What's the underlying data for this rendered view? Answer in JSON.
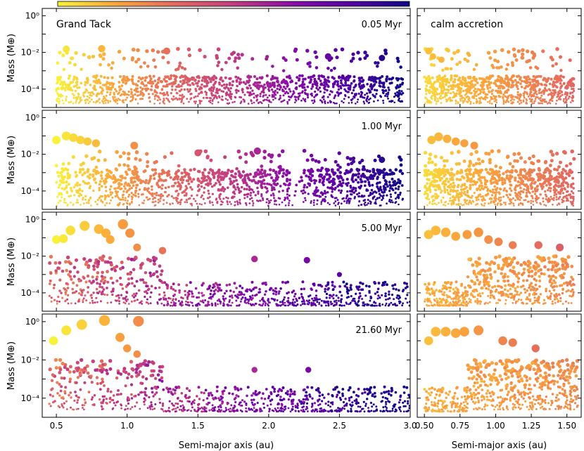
{
  "colorbar": {
    "colors": [
      "#f9f23a",
      "#fba53c",
      "#e36a5f",
      "#c23c81",
      "#8a0da8",
      "#5402a3",
      "#0d0887"
    ]
  },
  "chart_data": [
    {
      "type": "scatter",
      "panel": "Grand Tack",
      "title": "Grand Tack",
      "time_label": "0.05 Myr",
      "ylabel": "Mass (M⊕)",
      "yscale": "log",
      "ylim": [
        1e-05,
        2.5
      ],
      "xlim": [
        0.4,
        3.0
      ],
      "xrange_bodies": [
        0.5,
        2.95
      ],
      "notable_points": [
        {
          "x": 0.57,
          "y": 0.015
        },
        {
          "x": 0.82,
          "y": 0.016
        },
        {
          "x": 1.28,
          "y": 0.012
        },
        {
          "x": 2.42,
          "y": 0.006
        },
        {
          "x": 2.8,
          "y": 0.005
        }
      ]
    },
    {
      "type": "scatter",
      "panel": "calm accretion",
      "title": "calm accretion",
      "time_label": "",
      "ylabel": "",
      "yscale": "log",
      "ylim": [
        1e-05,
        2.5
      ],
      "xlim": [
        0.45,
        1.6
      ],
      "xrange_bodies": [
        0.5,
        1.55
      ],
      "notable_points": [
        {
          "x": 0.53,
          "y": 0.012
        },
        {
          "x": 0.56,
          "y": 0.006
        },
        {
          "x": 0.62,
          "y": 0.004
        }
      ]
    },
    {
      "type": "scatter",
      "panel": "Grand Tack",
      "title": "",
      "time_label": "1.00 Myr",
      "ylabel": "Mass (M⊕)",
      "yscale": "log",
      "ylim": [
        1e-05,
        2.5
      ],
      "xlim": [
        0.4,
        3.0
      ],
      "xrange_bodies": [
        0.5,
        2.95
      ],
      "notable_points": [
        {
          "x": 0.57,
          "y": 0.1
        },
        {
          "x": 0.62,
          "y": 0.08
        },
        {
          "x": 0.5,
          "y": 0.06
        },
        {
          "x": 0.67,
          "y": 0.06
        },
        {
          "x": 0.72,
          "y": 0.05
        },
        {
          "x": 0.78,
          "y": 0.04
        },
        {
          "x": 1.05,
          "y": 0.03
        },
        {
          "x": 1.5,
          "y": 0.012
        },
        {
          "x": 1.92,
          "y": 0.015
        },
        {
          "x": 2.8,
          "y": 0.005
        }
      ]
    },
    {
      "type": "scatter",
      "panel": "calm accretion",
      "title": "",
      "time_label": "",
      "ylabel": "",
      "yscale": "log",
      "ylim": [
        1e-05,
        2.5
      ],
      "xlim": [
        0.45,
        1.6
      ],
      "xrange_bodies": [
        0.5,
        1.55
      ],
      "notable_points": [
        {
          "x": 0.55,
          "y": 0.06
        },
        {
          "x": 0.6,
          "y": 0.09
        },
        {
          "x": 0.66,
          "y": 0.07
        },
        {
          "x": 0.72,
          "y": 0.05
        },
        {
          "x": 0.78,
          "y": 0.04
        },
        {
          "x": 0.85,
          "y": 0.03
        }
      ]
    },
    {
      "type": "scatter",
      "panel": "Grand Tack",
      "title": "",
      "time_label": "5.00 Myr",
      "ylabel": "Mass (M⊕)",
      "yscale": "log",
      "ylim": [
        1e-05,
        2.5
      ],
      "xlim": [
        0.4,
        3.0
      ],
      "xrange_bodies": [
        0.45,
        3.0
      ],
      "notable_points": [
        {
          "x": 0.5,
          "y": 0.08
        },
        {
          "x": 0.55,
          "y": 0.09
        },
        {
          "x": 0.6,
          "y": 0.25
        },
        {
          "x": 0.7,
          "y": 0.45
        },
        {
          "x": 0.8,
          "y": 0.3
        },
        {
          "x": 0.85,
          "y": 0.18
        },
        {
          "x": 0.88,
          "y": 0.08
        },
        {
          "x": 0.97,
          "y": 0.55
        },
        {
          "x": 1.02,
          "y": 0.18
        },
        {
          "x": 1.07,
          "y": 0.03
        },
        {
          "x": 1.25,
          "y": 0.02
        },
        {
          "x": 1.9,
          "y": 0.007
        },
        {
          "x": 2.27,
          "y": 0.006
        },
        {
          "x": 2.5,
          "y": 0.001
        }
      ]
    },
    {
      "type": "scatter",
      "panel": "calm accretion",
      "title": "",
      "time_label": "",
      "ylabel": "",
      "yscale": "log",
      "ylim": [
        1e-05,
        2.5
      ],
      "xlim": [
        0.45,
        1.6
      ],
      "xrange_bodies": [
        0.5,
        1.55
      ],
      "notable_points": [
        {
          "x": 0.53,
          "y": 0.15
        },
        {
          "x": 0.58,
          "y": 0.25
        },
        {
          "x": 0.65,
          "y": 0.2
        },
        {
          "x": 0.72,
          "y": 0.12
        },
        {
          "x": 0.8,
          "y": 0.15
        },
        {
          "x": 0.88,
          "y": 0.2
        },
        {
          "x": 0.95,
          "y": 0.08
        },
        {
          "x": 1.02,
          "y": 0.06
        },
        {
          "x": 1.12,
          "y": 0.04
        },
        {
          "x": 1.3,
          "y": 0.04
        },
        {
          "x": 1.45,
          "y": 0.03
        }
      ]
    },
    {
      "type": "scatter",
      "panel": "Grand Tack",
      "title": "",
      "time_label": "21.60 Myr",
      "ylabel": "Mass (M⊕)",
      "yscale": "log",
      "ylim": [
        1e-05,
        2.5
      ],
      "xlim": [
        0.4,
        3.0
      ],
      "xlabel": "Semi-major axis (au)",
      "xticks": [
        0.5,
        1.0,
        1.5,
        2.0,
        2.5,
        3.0
      ],
      "xrange_bodies": [
        0.45,
        3.0
      ],
      "notable_points": [
        {
          "x": 0.48,
          "y": 0.1
        },
        {
          "x": 0.57,
          "y": 0.35
        },
        {
          "x": 0.68,
          "y": 0.7
        },
        {
          "x": 0.84,
          "y": 1.15
        },
        {
          "x": 1.08,
          "y": 1.05
        },
        {
          "x": 0.95,
          "y": 0.15
        },
        {
          "x": 1.0,
          "y": 0.04
        },
        {
          "x": 1.07,
          "y": 0.02
        },
        {
          "x": 1.9,
          "y": 0.003
        },
        {
          "x": 2.28,
          "y": 0.003
        }
      ]
    },
    {
      "type": "scatter",
      "panel": "calm accretion",
      "title": "",
      "time_label": "",
      "ylabel": "",
      "yscale": "log",
      "ylim": [
        1e-05,
        2.5
      ],
      "xlim": [
        0.45,
        1.6
      ],
      "xlabel": "Semi-major axis (au)",
      "xticks": [
        0.5,
        0.75,
        1.0,
        1.25,
        1.5
      ],
      "xrange_bodies": [
        0.5,
        1.58
      ],
      "notable_points": [
        {
          "x": 0.53,
          "y": 0.1
        },
        {
          "x": 0.58,
          "y": 0.3
        },
        {
          "x": 0.65,
          "y": 0.3
        },
        {
          "x": 0.72,
          "y": 0.25
        },
        {
          "x": 0.78,
          "y": 0.3
        },
        {
          "x": 0.88,
          "y": 0.35
        },
        {
          "x": 1.05,
          "y": 0.1
        },
        {
          "x": 1.12,
          "y": 0.08
        },
        {
          "x": 1.28,
          "y": 0.04
        }
      ]
    }
  ],
  "tick_labels": {
    "y": [
      "10⁰",
      "10⁻²",
      "10⁻⁴"
    ],
    "x_left": [
      "0.5",
      "1.0",
      "1.5",
      "2.0",
      "2.5",
      "3.0"
    ],
    "x_right": [
      "0.50",
      "0.75",
      "1.00",
      "1.25",
      "1.50"
    ]
  }
}
